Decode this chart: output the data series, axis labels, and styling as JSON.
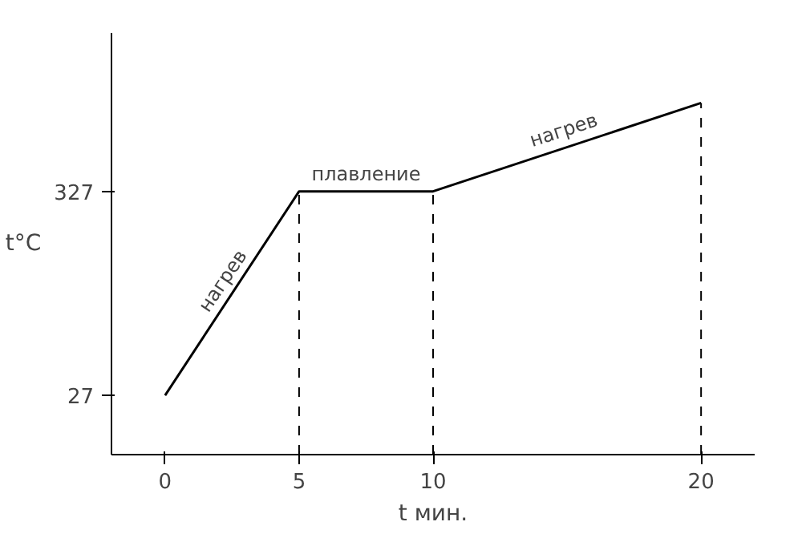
{
  "chart_data": {
    "type": "line",
    "xlabel": "t мин.",
    "ylabel": "t°C",
    "x": [
      0,
      5,
      10,
      20
    ],
    "series": [
      {
        "color": "#000000",
        "values": [
          27,
          327,
          327,
          457
        ]
      }
    ],
    "xlim": [
      -2,
      22
    ],
    "ylim": [
      -60,
      560
    ],
    "xticks": [
      0,
      5,
      10,
      20
    ],
    "yticks": [
      27,
      327
    ],
    "grid": false,
    "ref_lines": [
      {
        "axis": "x",
        "value": 5,
        "line_style": "dashed",
        "color": "#000000"
      },
      {
        "axis": "x",
        "value": 10,
        "line_style": "dashed",
        "color": "#000000"
      },
      {
        "axis": "x",
        "value": 20,
        "line_style": "dashed",
        "color": "#000000"
      }
    ],
    "annotations": [
      {
        "text": "нагрев",
        "x": 2.5,
        "y": 177
      },
      {
        "text": "плавление",
        "x": 7.5,
        "y": 327
      },
      {
        "text": "нагрев",
        "x": 15,
        "y": 392
      }
    ]
  }
}
